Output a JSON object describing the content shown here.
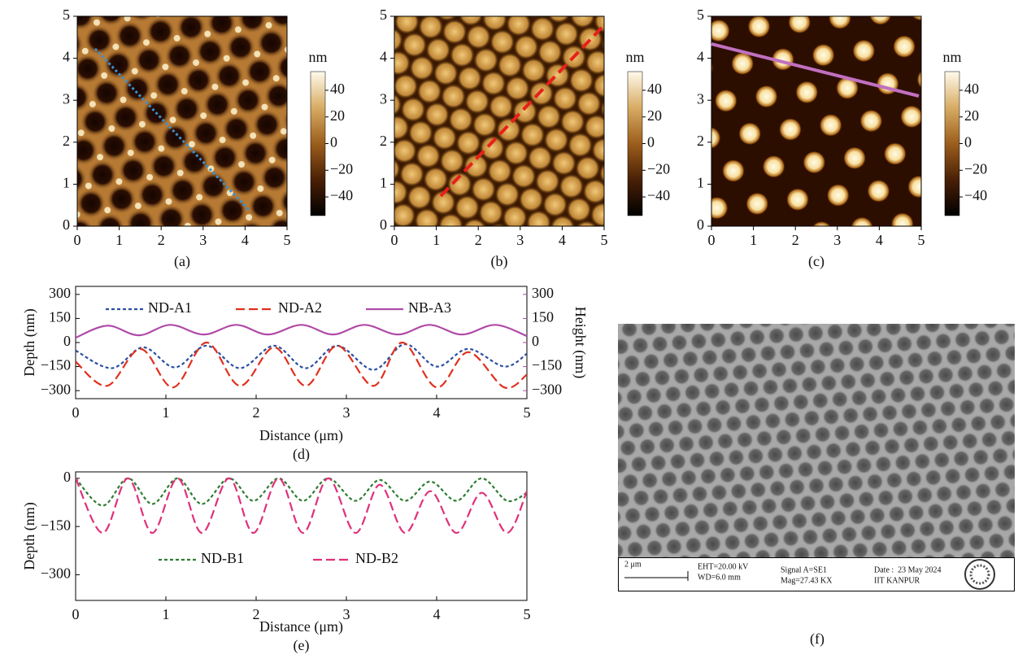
{
  "chart_data": [
    {
      "type": "heatmap",
      "panel_label": "(a)",
      "xlim": [
        0,
        5
      ],
      "ylim": [
        0,
        5
      ],
      "xticks": [
        0,
        1,
        2,
        3,
        4,
        5
      ],
      "yticks": [
        0,
        1,
        2,
        3,
        4,
        5
      ],
      "colorbar_label": "nm",
      "clim": [
        -54,
        54
      ],
      "cticks": [
        40,
        20,
        0,
        {
          "value": -20,
          "label": "−20"
        },
        {
          "value": -40,
          "label": "−40"
        }
      ]
    },
    {
      "type": "heatmap",
      "panel_label": "(b)",
      "xlim": [
        0,
        5
      ],
      "ylim": [
        0,
        5
      ],
      "xticks": [
        0,
        1,
        2,
        3,
        4,
        5
      ],
      "yticks": [
        0,
        1,
        2,
        3,
        4,
        5
      ],
      "colorbar_label": "nm",
      "clim": [
        -54,
        54
      ],
      "cticks": [
        40,
        20,
        0,
        {
          "value": -20,
          "label": "−20"
        },
        {
          "value": -40,
          "label": "−40"
        }
      ]
    },
    {
      "type": "heatmap",
      "panel_label": "(c)",
      "xlim": [
        0,
        5
      ],
      "ylim": [
        0,
        5
      ],
      "xticks": [
        0,
        1,
        2,
        3,
        4,
        5
      ],
      "yticks": [
        0,
        1,
        2,
        3,
        4,
        5
      ],
      "colorbar_label": "nm",
      "clim": [
        -54,
        54
      ],
      "cticks": [
        40,
        20,
        0,
        {
          "value": -20,
          "label": "−20"
        },
        {
          "value": -40,
          "label": "−40"
        }
      ]
    },
    {
      "type": "line",
      "panel_label": "(d)",
      "x_label": "Distance (μm)",
      "y_label": "Depth (nm)",
      "y2_label": "Height (nm)",
      "y2_color": "#b04aa8",
      "xlim": [
        0,
        5
      ],
      "xticks": [
        0,
        1,
        2,
        3,
        4,
        5
      ],
      "ylim": [
        -350,
        350
      ],
      "yticks": [
        300,
        150,
        0,
        {
          "value": -150,
          "label": "−150"
        },
        {
          "value": -300,
          "label": "−300"
        }
      ],
      "y2lim": [
        -350,
        350
      ],
      "y2ticks": [
        300,
        150,
        0,
        {
          "value": -150,
          "label": "−150"
        },
        {
          "value": -300,
          "label": "−300"
        }
      ],
      "legend": "top",
      "series": [
        {
          "name": "ND-A1",
          "color": "#2b4fa0",
          "style": "dotted",
          "x": [
            0,
            0.4,
            0.75,
            1.1,
            1.45,
            1.82,
            2.2,
            2.55,
            2.9,
            3.3,
            3.65,
            4.0,
            4.35,
            4.75,
            5
          ],
          "values": [
            -50,
            -160,
            -30,
            -155,
            -20,
            -160,
            -20,
            -160,
            -20,
            -170,
            -10,
            -150,
            -40,
            -150,
            -70
          ]
        },
        {
          "name": "ND-A2",
          "color": "#e0301e",
          "style": "dashed",
          "x": [
            0,
            0.35,
            0.72,
            1.08,
            1.45,
            1.82,
            2.2,
            2.55,
            2.9,
            3.3,
            3.62,
            4.0,
            4.35,
            4.75,
            5
          ],
          "values": [
            -120,
            -270,
            -40,
            -280,
            0,
            -270,
            -30,
            -270,
            -20,
            -270,
            0,
            -280,
            -60,
            -280,
            -200
          ]
        },
        {
          "name": "NB-A3",
          "color": "#b04aa8",
          "style": "solid",
          "axis": "y2",
          "x": [
            0,
            0.35,
            0.7,
            1.05,
            1.42,
            1.78,
            2.13,
            2.5,
            2.85,
            3.2,
            3.57,
            3.92,
            4.28,
            4.65,
            5
          ],
          "values": [
            30,
            105,
            45,
            110,
            50,
            110,
            50,
            110,
            50,
            110,
            50,
            110,
            50,
            110,
            40
          ]
        }
      ]
    },
    {
      "type": "line",
      "panel_label": "(e)",
      "x_label": "Distance (μm)",
      "y_label": "Depth (nm)",
      "xlim": [
        0,
        5
      ],
      "xticks": [
        0,
        1,
        2,
        3,
        4,
        5
      ],
      "ylim": [
        -380,
        20
      ],
      "yticks": [
        0,
        {
          "value": -150,
          "label": "−150"
        },
        {
          "value": -300,
          "label": "−300"
        }
      ],
      "legend": "bottom",
      "series": [
        {
          "name": "ND-B1",
          "color": "#2e7d32",
          "style": "dotted",
          "x": [
            0,
            0.3,
            0.58,
            0.85,
            1.13,
            1.4,
            1.7,
            1.97,
            2.25,
            2.52,
            2.8,
            3.1,
            3.37,
            3.65,
            3.93,
            4.22,
            4.5,
            4.78,
            5
          ],
          "values": [
            0,
            -85,
            0,
            -80,
            0,
            -80,
            0,
            -70,
            0,
            -70,
            0,
            -70,
            -5,
            -70,
            -10,
            -70,
            0,
            -70,
            -45
          ]
        },
        {
          "name": "ND-B2",
          "color": "#e0307a",
          "style": "dashed",
          "x": [
            0,
            0.3,
            0.58,
            0.85,
            1.13,
            1.4,
            1.7,
            1.97,
            2.25,
            2.52,
            2.8,
            3.1,
            3.37,
            3.65,
            3.93,
            4.22,
            4.5,
            4.78,
            5
          ],
          "values": [
            0,
            -170,
            0,
            -170,
            0,
            -170,
            0,
            -170,
            0,
            -170,
            0,
            -170,
            -20,
            -170,
            -40,
            -170,
            -45,
            -170,
            -40
          ]
        }
      ]
    }
  ],
  "sem_image": {
    "scale_bar": "2 μm",
    "eht": "EHT=20.00 kV",
    "wd": "WD=6.0 mm",
    "signal": "Signal A=SE1",
    "mag": "Mag=27.43 KX",
    "date": "Date :  23 May 2024",
    "institute": "IIT KANPUR",
    "panel_label": "(f)"
  }
}
